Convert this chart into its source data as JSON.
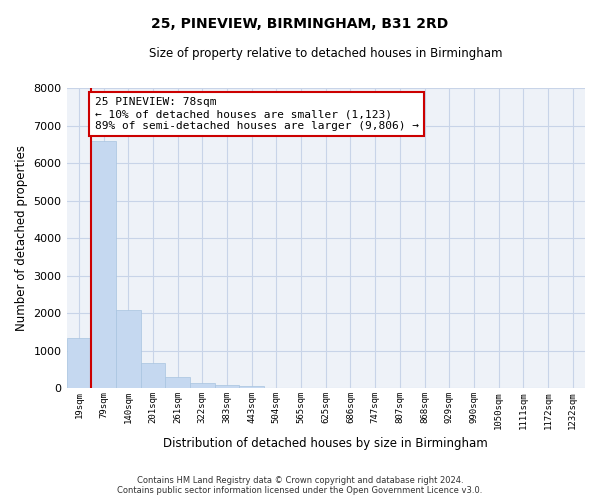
{
  "title": "25, PINEVIEW, BIRMINGHAM, B31 2RD",
  "subtitle": "Size of property relative to detached houses in Birmingham",
  "xlabel": "Distribution of detached houses by size in Birmingham",
  "ylabel": "Number of detached properties",
  "bar_color": "#c5d8f0",
  "bar_edge_color": "#a8c4e0",
  "marker_color": "#cc0000",
  "annotation_box_color": "#cc0000",
  "categories": [
    "19sqm",
    "79sqm",
    "140sqm",
    "201sqm",
    "261sqm",
    "322sqm",
    "383sqm",
    "443sqm",
    "504sqm",
    "565sqm",
    "625sqm",
    "686sqm",
    "747sqm",
    "807sqm",
    "868sqm",
    "929sqm",
    "990sqm",
    "1050sqm",
    "1111sqm",
    "1172sqm",
    "1232sqm"
  ],
  "values": [
    1330,
    6600,
    2080,
    660,
    300,
    150,
    80,
    50,
    0,
    0,
    0,
    0,
    0,
    0,
    0,
    0,
    0,
    0,
    0,
    0,
    0
  ],
  "ylim": [
    0,
    8000
  ],
  "yticks": [
    0,
    1000,
    2000,
    3000,
    4000,
    5000,
    6000,
    7000,
    8000
  ],
  "property_line_x": 1,
  "annotation_line1": "25 PINEVIEW: 78sqm",
  "annotation_line2": "← 10% of detached houses are smaller (1,123)",
  "annotation_line3": "89% of semi-detached houses are larger (9,806) →",
  "footer_line1": "Contains HM Land Registry data © Crown copyright and database right 2024.",
  "footer_line2": "Contains public sector information licensed under the Open Government Licence v3.0.",
  "background_color": "#ffffff",
  "plot_bg_color": "#eef2f8",
  "grid_color": "#c8d4e8"
}
